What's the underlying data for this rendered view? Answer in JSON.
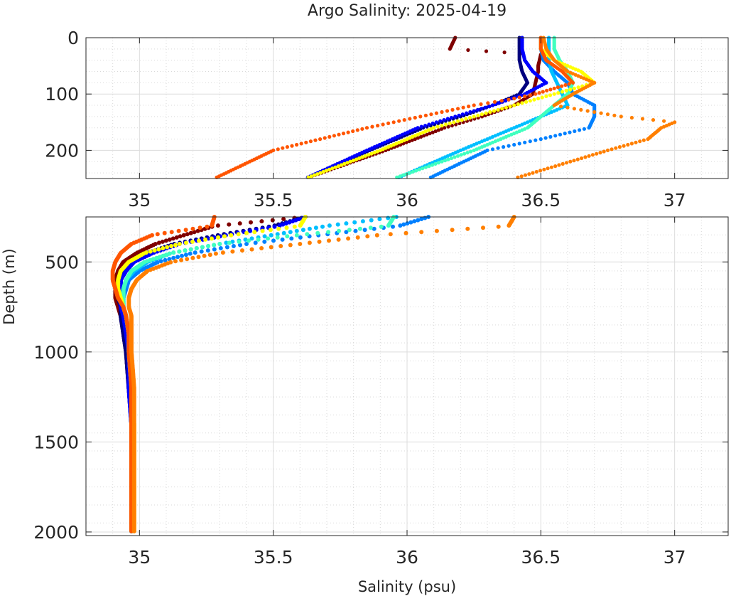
{
  "chart_data": {
    "type": "scatter",
    "title": "Argo Salinity: 2025-04-19",
    "xlabel": "Salinity (psu)",
    "ylabel": "Depth (m)",
    "grid": true,
    "panels": [
      {
        "name": "upper",
        "xlim": [
          34.8,
          37.2
        ],
        "ylim": [
          0,
          250
        ],
        "y_reversed": true,
        "xticks": [
          35,
          35.5,
          36,
          36.5,
          37
        ],
        "xtick_labels": [
          "35",
          "35.5",
          "36",
          "36.5",
          "37"
        ],
        "yticks": [
          0,
          100,
          200
        ],
        "ytick_labels": [
          "0",
          "100",
          "200"
        ]
      },
      {
        "name": "lower",
        "xlim": [
          34.8,
          37.2
        ],
        "ylim": [
          250,
          2020
        ],
        "y_reversed": true,
        "xticks": [
          35,
          35.5,
          36,
          36.5,
          37
        ],
        "xtick_labels": [
          "35",
          "35.5",
          "36",
          "36.5",
          "37"
        ],
        "yticks": [
          500,
          1000,
          1500,
          2000
        ],
        "ytick_labels": [
          "500",
          "1000",
          "1500",
          "2000"
        ]
      }
    ],
    "series": [
      {
        "color": "#7f0000",
        "depth": [
          0,
          10,
          20,
          30,
          50,
          60,
          80,
          100,
          120,
          140,
          160,
          200,
          250,
          300,
          350,
          400,
          450,
          500,
          550,
          600,
          650,
          700,
          750,
          800,
          900,
          1000,
          1200,
          1400,
          1600,
          1800,
          2000
        ],
        "salinity": [
          36.18,
          36.17,
          36.16,
          36.5,
          36.49,
          36.49,
          36.48,
          36.47,
          36.4,
          36.28,
          36.14,
          35.92,
          35.62,
          35.28,
          35.17,
          35.06,
          34.99,
          34.94,
          34.92,
          34.91,
          34.91,
          34.91,
          34.92,
          34.93,
          34.94,
          34.95,
          34.96,
          34.97,
          34.97,
          34.97,
          34.97
        ]
      },
      {
        "color": "#00007f",
        "depth": [
          0,
          20,
          40,
          60,
          80,
          100,
          120,
          140,
          160,
          200,
          250,
          300,
          350,
          400,
          450,
          500,
          550,
          600,
          650,
          700,
          750,
          800,
          900,
          1000,
          1200,
          1400,
          1600,
          1800,
          2000
        ],
        "salinity": [
          36.42,
          36.42,
          36.42,
          36.43,
          36.45,
          36.42,
          36.32,
          36.2,
          36.06,
          35.86,
          35.62,
          35.5,
          35.3,
          35.13,
          35.03,
          34.97,
          34.94,
          34.93,
          34.92,
          34.92,
          34.93,
          34.93,
          34.94,
          34.95,
          34.96,
          34.97,
          34.97,
          34.97,
          34.97
        ]
      },
      {
        "color": "#0000ff",
        "depth": [
          0,
          20,
          40,
          60,
          80,
          100,
          120,
          140,
          160,
          200,
          250,
          300,
          350,
          400,
          450,
          500,
          550,
          600,
          650,
          700,
          750,
          800,
          900,
          1000,
          1200,
          1400,
          1600,
          1800,
          2000
        ],
        "salinity": [
          36.43,
          36.43,
          36.44,
          36.47,
          36.52,
          36.44,
          36.32,
          36.18,
          36.04,
          35.85,
          35.62,
          35.52,
          35.33,
          35.15,
          35.05,
          34.98,
          34.95,
          34.93,
          34.93,
          34.93,
          34.93,
          34.94,
          34.95,
          34.96,
          34.96,
          34.97,
          34.97,
          34.97,
          34.97
        ]
      },
      {
        "color": "#0080ff",
        "depth": [
          0,
          20,
          40,
          60,
          80,
          100,
          120,
          140,
          160,
          180,
          200,
          250,
          300,
          350,
          400,
          450,
          500,
          550,
          600,
          650,
          700,
          750,
          800,
          900,
          1000,
          1200,
          1400,
          1600,
          1800,
          2000
        ],
        "salinity": [
          36.5,
          36.5,
          36.51,
          36.55,
          36.6,
          36.62,
          36.7,
          36.7,
          36.68,
          36.5,
          36.3,
          36.08,
          35.97,
          35.68,
          35.4,
          35.2,
          35.07,
          35.0,
          34.96,
          34.95,
          34.94,
          34.94,
          34.95,
          34.96,
          34.96,
          34.97,
          34.97,
          34.97,
          34.97,
          34.97
        ]
      },
      {
        "color": "#00bfff",
        "depth": [
          0,
          20,
          40,
          60,
          80,
          100,
          120,
          140,
          160,
          200,
          250,
          300,
          350,
          400,
          450,
          500,
          550,
          600,
          650,
          700,
          750,
          800,
          900,
          1000,
          1200,
          1400,
          1600,
          1800,
          2000
        ],
        "salinity": [
          36.53,
          36.53,
          36.53,
          36.54,
          36.56,
          36.58,
          36.6,
          36.5,
          36.4,
          36.2,
          35.96,
          35.7,
          35.5,
          35.3,
          35.12,
          35.03,
          34.98,
          34.95,
          34.94,
          34.94,
          34.94,
          34.95,
          34.96,
          34.96,
          34.97,
          34.97,
          34.97,
          34.97,
          34.97
        ]
      },
      {
        "color": "#40ffbf",
        "depth": [
          0,
          20,
          40,
          60,
          80,
          100,
          120,
          140,
          160,
          200,
          250,
          300,
          350,
          400,
          450,
          500,
          550,
          600,
          650,
          700,
          750,
          800,
          900,
          1000,
          1200,
          1400,
          1600,
          1800,
          2000
        ],
        "salinity": [
          36.55,
          36.55,
          36.57,
          36.6,
          36.62,
          36.6,
          36.55,
          36.5,
          36.45,
          36.25,
          35.95,
          35.93,
          35.6,
          35.3,
          35.12,
          35.02,
          34.97,
          34.95,
          34.94,
          34.94,
          34.94,
          34.95,
          34.96,
          34.96,
          34.97,
          34.97,
          34.97,
          34.97,
          34.97
        ]
      },
      {
        "color": "#ffff00",
        "depth": [
          0,
          20,
          40,
          60,
          80,
          100,
          120,
          140,
          160,
          200,
          250,
          300,
          350,
          400,
          450,
          500,
          550,
          600,
          650,
          700,
          750,
          800,
          900,
          1000,
          1200,
          1400,
          1600,
          1800,
          2000
        ],
        "salinity": [
          36.5,
          36.5,
          36.55,
          36.65,
          36.7,
          36.55,
          36.4,
          36.25,
          36.1,
          35.9,
          35.62,
          35.6,
          35.35,
          35.15,
          35.02,
          34.96,
          34.93,
          34.92,
          34.92,
          34.93,
          34.94,
          34.95,
          34.96,
          34.97,
          34.97,
          34.98,
          34.98,
          34.98,
          34.98
        ]
      },
      {
        "color": "#ff5500",
        "depth": [
          0,
          20,
          40,
          60,
          80,
          100,
          110,
          120,
          140,
          160,
          200,
          250,
          300,
          350,
          400,
          450,
          500,
          550,
          600,
          650,
          700,
          750,
          800,
          900,
          1000,
          1200,
          1400,
          1600,
          1800,
          2000
        ],
        "salinity": [
          36.5,
          36.5,
          36.52,
          36.58,
          36.62,
          36.48,
          36.38,
          36.25,
          36.05,
          35.85,
          35.5,
          35.28,
          35.27,
          35.05,
          34.97,
          34.93,
          34.91,
          34.9,
          34.9,
          34.91,
          34.92,
          34.94,
          34.95,
          34.96,
          34.96,
          34.97,
          34.97,
          34.97,
          34.97,
          34.97
        ]
      },
      {
        "color": "#ff7f00",
        "depth": [
          0,
          20,
          40,
          60,
          80,
          100,
          120,
          140,
          150,
          160,
          180,
          200,
          250,
          300,
          350,
          400,
          450,
          500,
          550,
          600,
          650,
          700,
          750,
          800,
          900,
          1000,
          1200,
          1400,
          1600,
          1800,
          2000
        ],
        "salinity": [
          36.51,
          36.52,
          36.55,
          36.6,
          36.7,
          36.62,
          36.55,
          36.8,
          37.0,
          36.95,
          36.9,
          36.75,
          36.4,
          36.38,
          35.9,
          35.6,
          35.3,
          35.12,
          35.03,
          34.99,
          34.97,
          34.96,
          34.96,
          34.97,
          34.97,
          34.97,
          34.98,
          34.98,
          34.98,
          34.98,
          34.98
        ]
      }
    ]
  }
}
